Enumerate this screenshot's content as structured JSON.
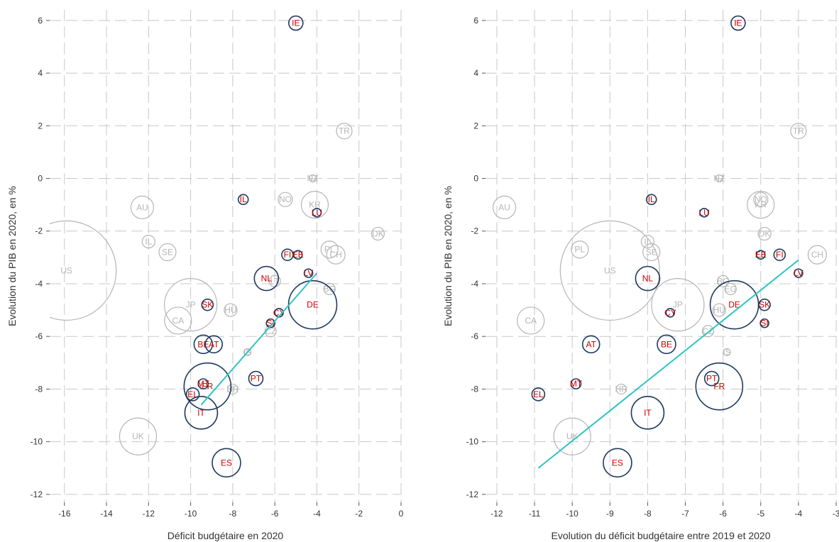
{
  "chart_data": [
    {
      "type": "scatter",
      "title": "",
      "xlabel": "Déficit budgétaire  en 2020",
      "ylabel": "Evolution du PIB en 2020, en %",
      "xlim": [
        -16.7,
        0
      ],
      "ylim": [
        -12.3,
        6.4
      ],
      "xticks": [
        "-16",
        "-14",
        "-12",
        "-10",
        "-8",
        "-6",
        "-4",
        "-2",
        "0"
      ],
      "yticks": [
        "6",
        "4",
        "2",
        "0",
        "-2",
        "-4",
        "-6",
        "-8",
        "-10",
        "-12"
      ],
      "grid": true,
      "trendline": {
        "x1": -9.5,
        "y1": -8.6,
        "x2": -4.0,
        "y2": -3.6
      },
      "colors": {
        "highlight_label": "#cc0000",
        "highlight_circle": "#1f3a5f",
        "muted": "#b5b5b5",
        "trend": "#2ec4c4",
        "grid": "#c8c8c8"
      },
      "points": [
        {
          "label": "IE",
          "x": -5.0,
          "y": 5.9,
          "r": 10,
          "hl": true
        },
        {
          "label": "TR",
          "x": -2.7,
          "y": 1.8,
          "r": 11,
          "hl": false
        },
        {
          "label": "NZ",
          "x": -4.2,
          "y": 0.0,
          "r": 5,
          "hl": false
        },
        {
          "label": "IL",
          "x": -7.5,
          "y": -0.8,
          "r": 7,
          "hl": true
        },
        {
          "label": "NO",
          "x": -5.5,
          "y": -0.8,
          "r": 10,
          "hl": false
        },
        {
          "label": "KR",
          "x": -4.1,
          "y": -1.0,
          "r": 19,
          "hl": false
        },
        {
          "label": "LU",
          "x": -4.0,
          "y": -1.3,
          "r": 6,
          "hl": true
        },
        {
          "label": "AU",
          "x": -12.3,
          "y": -1.1,
          "r": 16,
          "hl": false
        },
        {
          "label": "DK",
          "x": -1.1,
          "y": -2.1,
          "r": 9,
          "hl": false
        },
        {
          "label": "IL",
          "x": -12.0,
          "y": -2.4,
          "r": 9,
          "hl": false
        },
        {
          "label": "SE",
          "x": -11.1,
          "y": -2.8,
          "r": 12,
          "hl": false
        },
        {
          "label": "PL",
          "x": -3.4,
          "y": -2.7,
          "r": 12,
          "hl": false
        },
        {
          "label": "CH",
          "x": -3.1,
          "y": -2.9,
          "r": 13,
          "hl": false
        },
        {
          "label": "FI",
          "x": -5.4,
          "y": -2.9,
          "r": 8,
          "hl": true
        },
        {
          "label": "EE",
          "x": -4.9,
          "y": -2.9,
          "r": 6,
          "hl": true
        },
        {
          "label": "US",
          "x": -15.9,
          "y": -3.5,
          "r": 70,
          "hl": false
        },
        {
          "label": "LV",
          "x": -4.4,
          "y": -3.6,
          "r": 6,
          "hl": true
        },
        {
          "label": "NL",
          "x": -6.4,
          "y": -3.8,
          "r": 17,
          "hl": true
        },
        {
          "label": "LT",
          "x": -6.0,
          "y": -3.9,
          "r": 8,
          "hl": false
        },
        {
          "label": "BG",
          "x": -3.4,
          "y": -4.2,
          "r": 8,
          "hl": false
        },
        {
          "label": "JP",
          "x": -10.0,
          "y": -4.8,
          "r": 37,
          "hl": false
        },
        {
          "label": "SK",
          "x": -9.2,
          "y": -4.8,
          "r": 8,
          "hl": true
        },
        {
          "label": "HU",
          "x": -8.1,
          "y": -5.0,
          "r": 9,
          "hl": false
        },
        {
          "label": "CY",
          "x": -5.8,
          "y": -5.1,
          "r": 6,
          "hl": true
        },
        {
          "label": "DE",
          "x": -4.2,
          "y": -4.8,
          "r": 34,
          "hl": true
        },
        {
          "label": "CA",
          "x": -10.6,
          "y": -5.4,
          "r": 19,
          "hl": false
        },
        {
          "label": "SI",
          "x": -6.2,
          "y": -5.5,
          "r": 6,
          "hl": true
        },
        {
          "label": "CZ",
          "x": -6.2,
          "y": -5.8,
          "r": 8,
          "hl": false
        },
        {
          "label": "BE",
          "x": -9.4,
          "y": -6.3,
          "r": 13,
          "hl": true
        },
        {
          "label": "AT",
          "x": -8.9,
          "y": -6.3,
          "r": 12,
          "hl": true
        },
        {
          "label": "IS",
          "x": -7.3,
          "y": -6.6,
          "r": 5,
          "hl": false
        },
        {
          "label": "PT",
          "x": -6.9,
          "y": -7.6,
          "r": 10,
          "hl": true
        },
        {
          "label": "MT",
          "x": -9.4,
          "y": -7.8,
          "r": 7,
          "hl": true
        },
        {
          "label": "FR",
          "x": -9.2,
          "y": -7.9,
          "r": 33,
          "hl": true
        },
        {
          "label": "EL",
          "x": -9.9,
          "y": -8.2,
          "r": 9,
          "hl": true
        },
        {
          "label": "HR",
          "x": -8.0,
          "y": -8.0,
          "r": 7,
          "hl": false
        },
        {
          "label": "IT",
          "x": -9.5,
          "y": -8.9,
          "r": 23,
          "hl": true
        },
        {
          "label": "UK",
          "x": -12.5,
          "y": -9.8,
          "r": 26,
          "hl": false
        },
        {
          "label": "ES",
          "x": -8.3,
          "y": -10.8,
          "r": 20,
          "hl": true
        }
      ]
    },
    {
      "type": "scatter",
      "title": "",
      "xlabel": "Evolution du déficit budgétaire entre 2019 et 2020",
      "ylabel": "Evolution du PIB en 2020, en %",
      "xlim": [
        -12.3,
        -3
      ],
      "ylim": [
        -12.3,
        6.4
      ],
      "xticks": [
        "-12",
        "-11",
        "-10",
        "-9",
        "-8",
        "-7",
        "-6",
        "-5",
        "-4",
        "-3"
      ],
      "yticks": [
        "6",
        "4",
        "2",
        "0",
        "-2",
        "-4",
        "-6",
        "-8",
        "-10",
        "-12"
      ],
      "grid": true,
      "trendline": {
        "x1": -10.9,
        "y1": -11.0,
        "x2": -4.0,
        "y2": -3.1
      },
      "colors": {
        "highlight_label": "#cc0000",
        "highlight_circle": "#1f3a5f",
        "muted": "#b5b5b5",
        "trend": "#2ec4c4",
        "grid": "#c8c8c8"
      },
      "points": [
        {
          "label": "IE",
          "x": -5.6,
          "y": 5.9,
          "r": 10,
          "hl": true
        },
        {
          "label": "TR",
          "x": -4.0,
          "y": 1.8,
          "r": 11,
          "hl": false
        },
        {
          "label": "NZ",
          "x": -6.1,
          "y": 0.0,
          "r": 5,
          "hl": false
        },
        {
          "label": "IL",
          "x": -7.9,
          "y": -0.8,
          "r": 7,
          "hl": true
        },
        {
          "label": "AU",
          "x": -11.8,
          "y": -1.1,
          "r": 16,
          "hl": false
        },
        {
          "label": "NO",
          "x": -5.0,
          "y": -0.8,
          "r": 10,
          "hl": false
        },
        {
          "label": "KR",
          "x": -5.0,
          "y": -1.0,
          "r": 19,
          "hl": false
        },
        {
          "label": "LU",
          "x": -6.5,
          "y": -1.3,
          "r": 6,
          "hl": true
        },
        {
          "label": "DK",
          "x": -4.9,
          "y": -2.1,
          "r": 9,
          "hl": false
        },
        {
          "label": "IL",
          "x": -8.0,
          "y": -2.4,
          "r": 9,
          "hl": false
        },
        {
          "label": "PL",
          "x": -9.8,
          "y": -2.7,
          "r": 12,
          "hl": false
        },
        {
          "label": "SE",
          "x": -7.9,
          "y": -2.8,
          "r": 12,
          "hl": false
        },
        {
          "label": "EE",
          "x": -5.0,
          "y": -2.9,
          "r": 6,
          "hl": true
        },
        {
          "label": "FI",
          "x": -4.5,
          "y": -2.9,
          "r": 8,
          "hl": true
        },
        {
          "label": "CH",
          "x": -3.5,
          "y": -2.9,
          "r": 13,
          "hl": false
        },
        {
          "label": "US",
          "x": -9.0,
          "y": -3.5,
          "r": 70,
          "hl": false
        },
        {
          "label": "LV",
          "x": -4.0,
          "y": -3.6,
          "r": 6,
          "hl": true
        },
        {
          "label": "NL",
          "x": -8.0,
          "y": -3.8,
          "r": 17,
          "hl": true
        },
        {
          "label": "BG",
          "x": -6.0,
          "y": -3.9,
          "r": 8,
          "hl": false
        },
        {
          "label": "EG",
          "x": -5.8,
          "y": -4.2,
          "r": 8,
          "hl": false
        },
        {
          "label": "JP",
          "x": -7.2,
          "y": -4.8,
          "r": 37,
          "hl": false
        },
        {
          "label": "DE",
          "x": -5.7,
          "y": -4.8,
          "r": 34,
          "hl": true
        },
        {
          "label": "SK",
          "x": -4.9,
          "y": -4.8,
          "r": 8,
          "hl": true
        },
        {
          "label": "HU",
          "x": -6.1,
          "y": -5.0,
          "r": 9,
          "hl": false
        },
        {
          "label": "CY",
          "x": -7.4,
          "y": -5.1,
          "r": 6,
          "hl": true
        },
        {
          "label": "CA",
          "x": -11.1,
          "y": -5.4,
          "r": 19,
          "hl": false
        },
        {
          "label": "SI",
          "x": -4.9,
          "y": -5.5,
          "r": 6,
          "hl": true
        },
        {
          "label": "CZ",
          "x": -6.4,
          "y": -5.8,
          "r": 8,
          "hl": false
        },
        {
          "label": "AT",
          "x": -9.5,
          "y": -6.3,
          "r": 12,
          "hl": true
        },
        {
          "label": "BE",
          "x": -7.5,
          "y": -6.3,
          "r": 13,
          "hl": true
        },
        {
          "label": "IS",
          "x": -5.9,
          "y": -6.6,
          "r": 5,
          "hl": false
        },
        {
          "label": "PT",
          "x": -6.3,
          "y": -7.6,
          "r": 10,
          "hl": true
        },
        {
          "label": "MT",
          "x": -9.9,
          "y": -7.8,
          "r": 7,
          "hl": true
        },
        {
          "label": "FR",
          "x": -6.1,
          "y": -7.9,
          "r": 33,
          "hl": true
        },
        {
          "label": "HR",
          "x": -8.7,
          "y": -8.0,
          "r": 7,
          "hl": false
        },
        {
          "label": "EL",
          "x": -10.9,
          "y": -8.2,
          "r": 9,
          "hl": true
        },
        {
          "label": "IT",
          "x": -8.0,
          "y": -8.9,
          "r": 23,
          "hl": true
        },
        {
          "label": "UK",
          "x": -10.0,
          "y": -9.8,
          "r": 26,
          "hl": false
        },
        {
          "label": "ES",
          "x": -8.8,
          "y": -10.8,
          "r": 20,
          "hl": true
        }
      ]
    }
  ]
}
